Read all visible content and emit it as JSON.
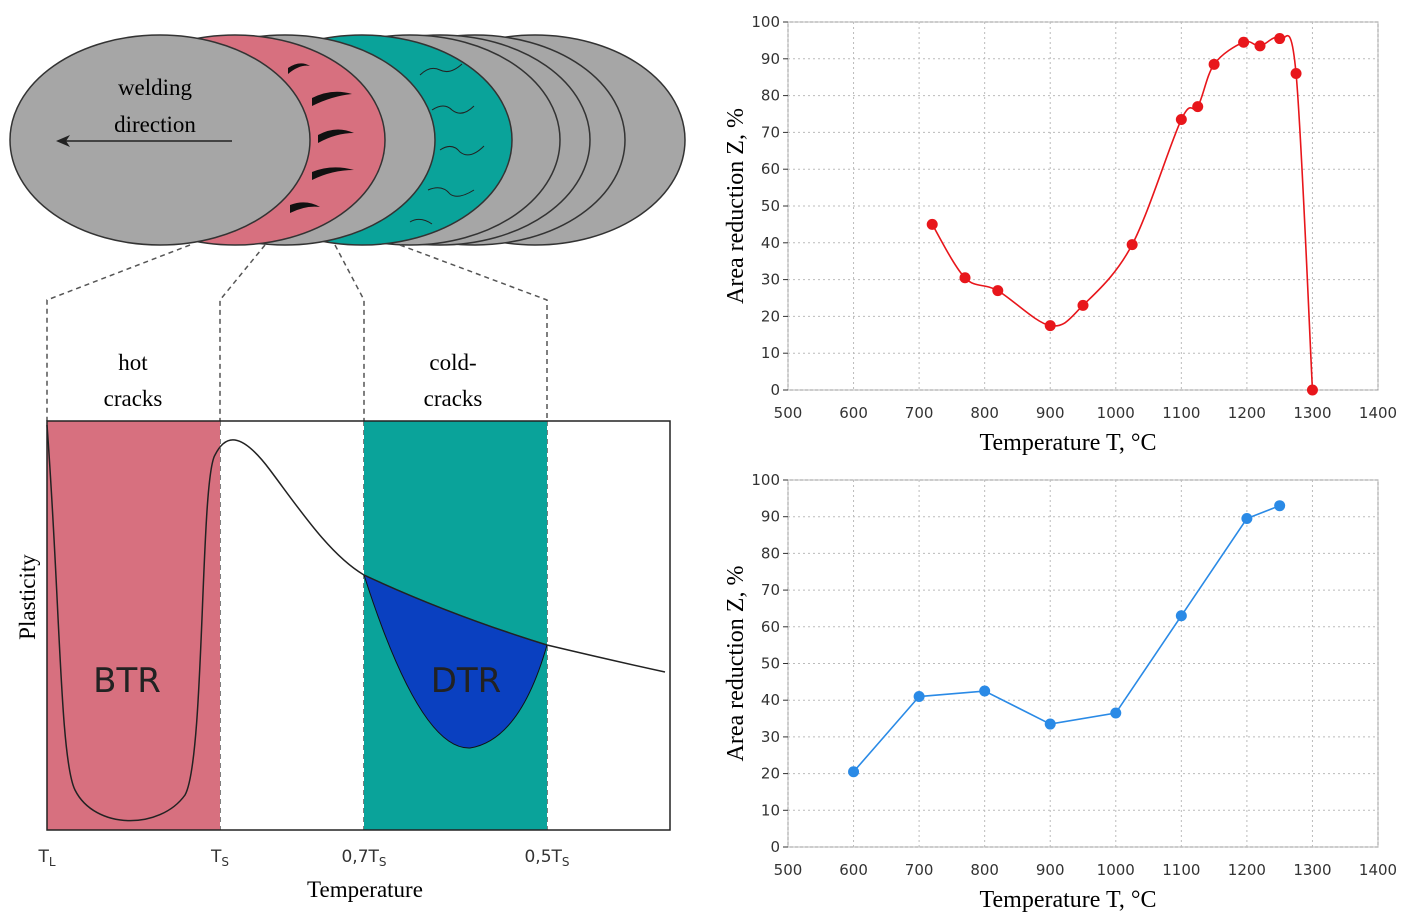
{
  "diagram": {
    "welding_direction": [
      "welding",
      "direction"
    ],
    "hot_cracks": [
      "hot",
      "cracks"
    ],
    "cold_cracks": [
      "cold-",
      "cracks"
    ],
    "btr": "BTR",
    "dtr": "DTR",
    "y_label": "Plasticity",
    "x_label": "Temperature",
    "ticks": [
      {
        "base": "T",
        "sub": "L"
      },
      {
        "base": "T",
        "sub": "S"
      },
      {
        "base": "0,7T",
        "sub": "S"
      },
      {
        "base": "0,5T",
        "sub": "S"
      }
    ]
  },
  "chart_data": [
    {
      "type": "scatter",
      "smooth": true,
      "xlabel": "Temperature T, °C",
      "ylabel": "Area reduction Z, %",
      "color": "#e8161b",
      "x": [
        720,
        770,
        820,
        900,
        950,
        1025,
        1100,
        1125,
        1150,
        1195,
        1220,
        1250,
        1275,
        1300
      ],
      "values": [
        45,
        30.5,
        27,
        17.5,
        23,
        39.5,
        73.5,
        77,
        88.5,
        94.5,
        93.5,
        95.5,
        86,
        0
      ],
      "xlim": [
        500,
        1400
      ],
      "ylim": [
        0,
        100
      ],
      "xticks": [
        500,
        600,
        700,
        800,
        900,
        1000,
        1100,
        1200,
        1300,
        1400
      ],
      "yticks": [
        0,
        10,
        20,
        30,
        40,
        50,
        60,
        70,
        80,
        90,
        100
      ],
      "grid": true
    },
    {
      "type": "line",
      "xlabel": "Temperature T, °C",
      "ylabel": "Area reduction Z, %",
      "color": "#2a8ae6",
      "x": [
        600,
        700,
        800,
        900,
        1000,
        1100,
        1200,
        1250
      ],
      "values": [
        20.5,
        41,
        42.5,
        33.5,
        36.5,
        63,
        89.5,
        93
      ],
      "xlim": [
        500,
        1400
      ],
      "ylim": [
        0,
        100
      ],
      "xticks": [
        500,
        600,
        700,
        800,
        900,
        1000,
        1100,
        1200,
        1300,
        1400
      ],
      "yticks": [
        0,
        10,
        20,
        30,
        40,
        50,
        60,
        70,
        80,
        90,
        100
      ],
      "grid": true
    }
  ]
}
